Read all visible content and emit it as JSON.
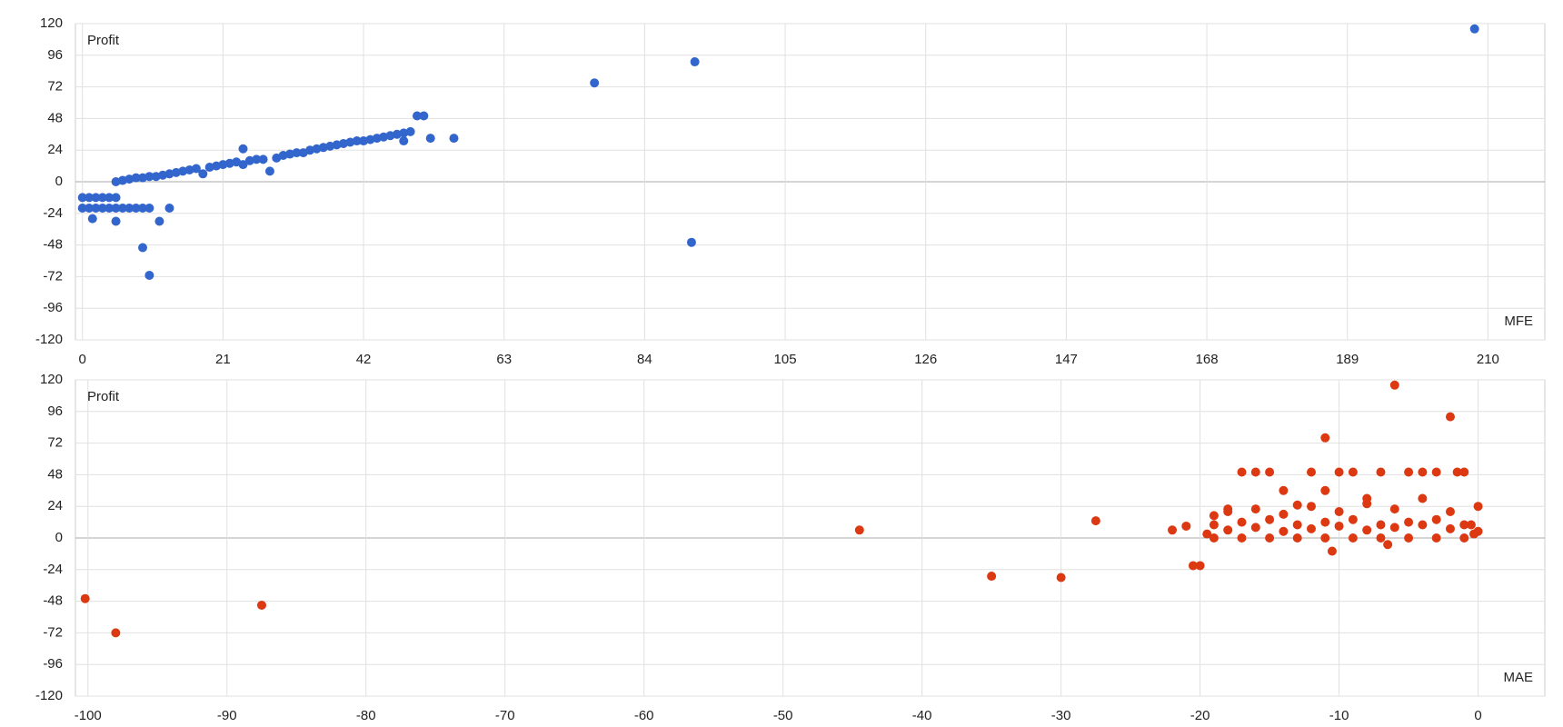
{
  "chart_data": [
    {
      "type": "scatter",
      "y_label": "Profit",
      "x_label": "MFE",
      "grid": true,
      "xlim": [
        -1.05,
        218.5
      ],
      "ylim": [
        -120,
        120
      ],
      "xticks": [
        0,
        21,
        42,
        63,
        84,
        105,
        126,
        147,
        168,
        189,
        210
      ],
      "yticks": [
        -120,
        -96,
        -72,
        -48,
        -24,
        0,
        24,
        48,
        72,
        96,
        120
      ],
      "series": [
        {
          "color": "#3366cc",
          "x": [
            0,
            1,
            2,
            3,
            4,
            5,
            0,
            1,
            2,
            3,
            4,
            5,
            6,
            7,
            8,
            9,
            10,
            1.5,
            5,
            9,
            10,
            11.5,
            13,
            5,
            6,
            7,
            8,
            9,
            10,
            11,
            12,
            13,
            14,
            15,
            16,
            17,
            18,
            19,
            20,
            21,
            22,
            23,
            24,
            25,
            24,
            26,
            27,
            28,
            29,
            30,
            31,
            32,
            33,
            34,
            35,
            36,
            37,
            38,
            39,
            40,
            41,
            42,
            43,
            44,
            45,
            46,
            47,
            48,
            49,
            48,
            50,
            51,
            52,
            55.5,
            76.5,
            91.5,
            91,
            208
          ],
          "y": [
            -12,
            -12,
            -12,
            -12,
            -12,
            -12,
            -20,
            -20,
            -20,
            -20,
            -20,
            -20,
            -20,
            -20,
            -20,
            -20,
            -20,
            -28,
            -30,
            -50,
            -71,
            -30,
            -20,
            0,
            1,
            2,
            3,
            3,
            4,
            4,
            5,
            6,
            7,
            8,
            9,
            10,
            6,
            11,
            12,
            13,
            14,
            15,
            13,
            16,
            25,
            17,
            17,
            8,
            18,
            20,
            21,
            22,
            22,
            24,
            25,
            26,
            27,
            28,
            29,
            30,
            31,
            31,
            32,
            33,
            34,
            35,
            36,
            37,
            38,
            31,
            50,
            50,
            33,
            33,
            75,
            91,
            -46,
            116
          ]
        }
      ]
    },
    {
      "type": "scatter",
      "y_label": "Profit",
      "x_label": "MAE",
      "grid": true,
      "xlim": [
        -100.9,
        4.8
      ],
      "ylim": [
        -120,
        120
      ],
      "xticks": [
        -100,
        -90,
        -80,
        -70,
        -60,
        -50,
        -40,
        -30,
        -20,
        -10,
        0
      ],
      "yticks": [
        -120,
        -96,
        -72,
        -48,
        -24,
        0,
        24,
        48,
        72,
        96,
        120
      ],
      "series": [
        {
          "color": "#dc3912",
          "x": [
            -100.2,
            -98,
            -87.5,
            -44.5,
            -35,
            -30,
            -27.5,
            -22,
            -21,
            -20.5,
            -20,
            -19.5,
            -19,
            -18,
            -17,
            -16,
            -15,
            -14,
            -13,
            -12,
            -11,
            -11,
            -10.5,
            -10,
            -9,
            -8,
            -7,
            -6.5,
            -6,
            -5,
            -4,
            -3,
            -2,
            -1.5,
            -1,
            -0.5,
            0,
            -19,
            -17,
            -15,
            -13,
            -11,
            -9,
            -7,
            -5,
            -3,
            -1,
            -19,
            -17,
            -15,
            -13,
            -11,
            -9,
            -7,
            -5,
            -3,
            -1,
            -18,
            -16,
            -14,
            -12,
            -10,
            -8,
            -6,
            -4,
            -2,
            0,
            -18,
            -16,
            -14,
            -12,
            -10,
            -8,
            -6,
            -4,
            -2,
            -0.3
          ],
          "y": [
            -46,
            -72,
            -51,
            6,
            -29,
            -30,
            13,
            6,
            9,
            -21,
            -21,
            3,
            17,
            22,
            50,
            50,
            50,
            36,
            25,
            50,
            76,
            36,
            -10,
            50,
            50,
            30,
            50,
            -5,
            116,
            50,
            50,
            50,
            92,
            50,
            50,
            10,
            5,
            0,
            0,
            0,
            0,
            0,
            0,
            0,
            0,
            0,
            0,
            10,
            12,
            14,
            10,
            12,
            14,
            10,
            12,
            14,
            10,
            20,
            22,
            18,
            24,
            20,
            26,
            22,
            30,
            20,
            24,
            6,
            8,
            5,
            7,
            9,
            6,
            8,
            10,
            7,
            3
          ]
        }
      ]
    }
  ]
}
